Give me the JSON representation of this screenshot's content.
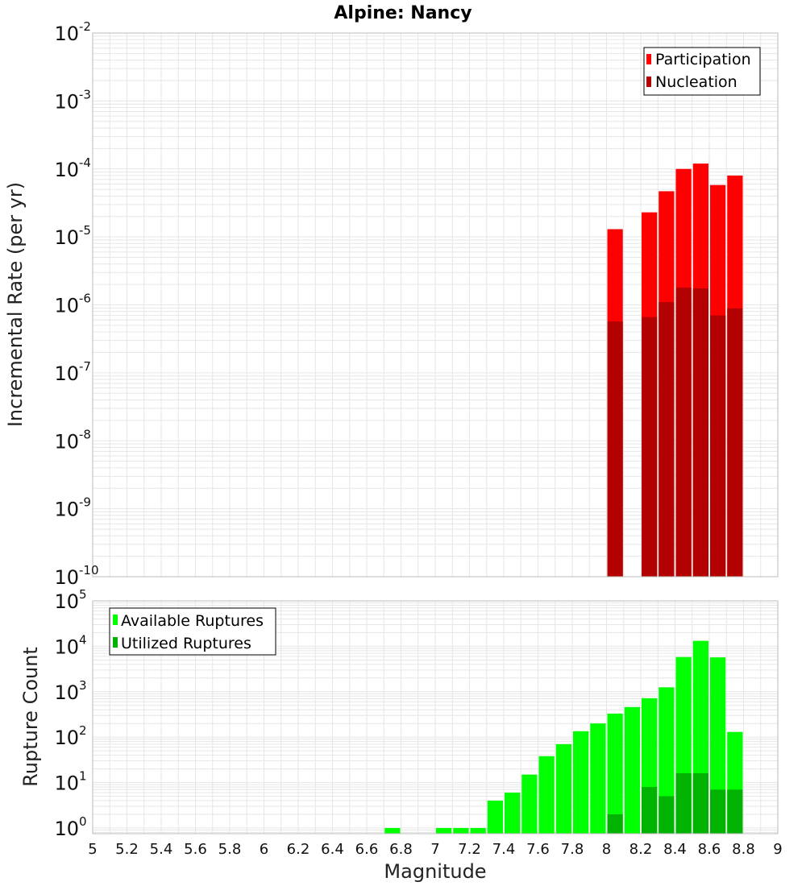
{
  "chart_title": "Alpine: Nancy",
  "x_tick_labels": [
    "5",
    "5.2",
    "5.4",
    "5.6",
    "5.8",
    "6",
    "6.2",
    "6.4",
    "6.6",
    "6.8",
    "7",
    "7.2",
    "7.4",
    "7.6",
    "7.8",
    "8",
    "8.2",
    "8.4",
    "8.6",
    "8.8",
    "9"
  ],
  "colors": {
    "participation": "#ff0000",
    "nucleation": "#b30000",
    "available": "#00ff00",
    "utilized": "#00b300",
    "grid": "#e6e6e6",
    "frame": "#bbbbbb"
  },
  "chart_data": [
    {
      "type": "bar",
      "title": "Alpine: Nancy",
      "xlabel": "",
      "ylabel": "Incremental Rate (per yr)",
      "yscale": "log",
      "ylim": [
        1e-10,
        0.01
      ],
      "xlim": [
        5,
        9
      ],
      "ytick_bases": [
        "10",
        "10",
        "10",
        "10",
        "10",
        "10",
        "10",
        "10",
        "10"
      ],
      "ytick_exponents": [
        "-10",
        "-9",
        "-8",
        "-7",
        "-6",
        "-5",
        "-4",
        "-3",
        "-2"
      ],
      "legend_position": "top-right",
      "series": [
        {
          "name": "Participation",
          "x": [
            8.05,
            8.25,
            8.35,
            8.45,
            8.55,
            8.65,
            8.75
          ],
          "values": [
            1.3e-05,
            2.3e-05,
            4.7e-05,
            0.0001,
            0.00012,
            5.8e-05,
            8e-05
          ]
        },
        {
          "name": "Nucleation",
          "x": [
            8.05,
            8.25,
            8.35,
            8.45,
            8.55,
            8.65,
            8.75
          ],
          "values": [
            5.7e-07,
            6.6e-07,
            1.1e-06,
            1.8e-06,
            1.75e-06,
            7e-07,
            8.9e-07
          ]
        }
      ]
    },
    {
      "type": "bar",
      "title": "",
      "xlabel": "Magnitude",
      "ylabel": "Rupture Count",
      "yscale": "log",
      "ylim": [
        0.75,
        100000.0
      ],
      "xlim": [
        5,
        9
      ],
      "ytick_bases": [
        "10",
        "10",
        "10",
        "10",
        "10",
        "10"
      ],
      "ytick_exponents": [
        "0",
        "1",
        "2",
        "3",
        "4",
        "5"
      ],
      "legend_position": "top-left",
      "series": [
        {
          "name": "Available Ruptures",
          "x": [
            6.75,
            7.05,
            7.15,
            7.25,
            7.35,
            7.45,
            7.55,
            7.65,
            7.75,
            7.85,
            7.95,
            8.05,
            8.15,
            8.25,
            8.35,
            8.45,
            8.55,
            8.65,
            8.75
          ],
          "values": [
            1,
            1,
            1,
            1,
            4,
            6,
            15,
            38,
            70,
            135,
            200,
            330,
            460,
            720,
            1250,
            5800,
            13200,
            5700,
            130
          ]
        },
        {
          "name": "Utilized Ruptures",
          "x": [
            8.05,
            8.25,
            8.35,
            8.45,
            8.55,
            8.65,
            8.75
          ],
          "values": [
            2,
            8,
            5,
            16,
            16,
            7,
            7
          ]
        }
      ]
    }
  ]
}
